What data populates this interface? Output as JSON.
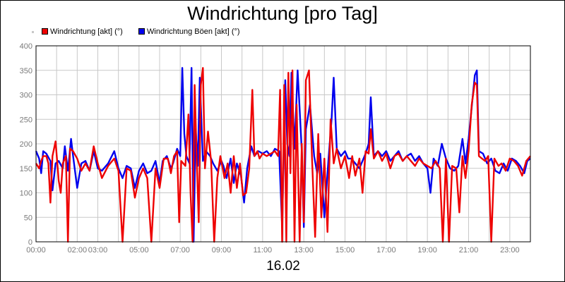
{
  "chart_data": {
    "type": "line",
    "title": "Windrichtung [pro Tag]",
    "xlabel": "16.02",
    "ylim": [
      0,
      400
    ],
    "xlim": [
      "00:00",
      "24:00"
    ],
    "grid": true,
    "legend_position": "top-left",
    "yticks": [
      "0",
      "50",
      "100",
      "150",
      "200",
      "250",
      "300",
      "350",
      "400"
    ],
    "xticks": [
      {
        "t": 0,
        "label": "00:00"
      },
      {
        "t": 2,
        "label": "02:00"
      },
      {
        "t": 3,
        "label": "03:00"
      },
      {
        "t": 5,
        "label": "05:00"
      },
      {
        "t": 7,
        "label": "07:00"
      },
      {
        "t": 9,
        "label": "09:00"
      },
      {
        "t": 11,
        "label": "11:00"
      },
      {
        "t": 13,
        "label": "13:00"
      },
      {
        "t": 15,
        "label": "15:00"
      },
      {
        "t": 17,
        "label": "17:00"
      },
      {
        "t": 19,
        "label": "19:00"
      },
      {
        "t": 21,
        "label": "21:00"
      },
      {
        "t": 23,
        "label": "23:00"
      }
    ],
    "series": [
      {
        "name": "Windrichtung Böen [akt] (°)",
        "color": "#0000ee",
        "points": [
          [
            0.0,
            185
          ],
          [
            0.15,
            170
          ],
          [
            0.25,
            140
          ],
          [
            0.35,
            185
          ],
          [
            0.5,
            180
          ],
          [
            0.7,
            165
          ],
          [
            0.8,
            105
          ],
          [
            0.95,
            160
          ],
          [
            1.1,
            165
          ],
          [
            1.3,
            150
          ],
          [
            1.4,
            195
          ],
          [
            1.55,
            145
          ],
          [
            1.7,
            210
          ],
          [
            1.8,
            175
          ],
          [
            2.0,
            110
          ],
          [
            2.2,
            160
          ],
          [
            2.4,
            165
          ],
          [
            2.6,
            145
          ],
          [
            2.8,
            185
          ],
          [
            3.0,
            150
          ],
          [
            3.2,
            145
          ],
          [
            3.5,
            160
          ],
          [
            3.8,
            185
          ],
          [
            4.0,
            150
          ],
          [
            4.2,
            130
          ],
          [
            4.4,
            155
          ],
          [
            4.6,
            150
          ],
          [
            4.8,
            110
          ],
          [
            5.0,
            145
          ],
          [
            5.2,
            160
          ],
          [
            5.4,
            140
          ],
          [
            5.6,
            145
          ],
          [
            5.8,
            165
          ],
          [
            6.0,
            120
          ],
          [
            6.15,
            165
          ],
          [
            6.35,
            175
          ],
          [
            6.55,
            150
          ],
          [
            6.65,
            160
          ],
          [
            6.85,
            190
          ],
          [
            7.0,
            175
          ],
          [
            7.1,
            355
          ],
          [
            7.2,
            220
          ],
          [
            7.3,
            175
          ],
          [
            7.45,
            160
          ],
          [
            7.55,
            355
          ],
          [
            7.65,
            0
          ],
          [
            7.75,
            230
          ],
          [
            7.85,
            155
          ],
          [
            7.95,
            335
          ],
          [
            8.1,
            165
          ],
          [
            8.25,
            185
          ],
          [
            8.45,
            175
          ],
          [
            8.6,
            160
          ],
          [
            8.8,
            145
          ],
          [
            9.0,
            165
          ],
          [
            9.1,
            155
          ],
          [
            9.25,
            130
          ],
          [
            9.45,
            170
          ],
          [
            9.6,
            120
          ],
          [
            9.75,
            160
          ],
          [
            9.95,
            135
          ],
          [
            10.1,
            80
          ],
          [
            10.25,
            150
          ],
          [
            10.45,
            195
          ],
          [
            10.6,
            175
          ],
          [
            10.8,
            185
          ],
          [
            11.0,
            180
          ],
          [
            11.2,
            185
          ],
          [
            11.4,
            175
          ],
          [
            11.6,
            190
          ],
          [
            11.8,
            185
          ],
          [
            11.95,
            30
          ],
          [
            12.1,
            330
          ],
          [
            12.2,
            200
          ],
          [
            12.3,
            175
          ],
          [
            12.4,
            345
          ],
          [
            12.55,
            190
          ],
          [
            12.7,
            350
          ],
          [
            12.8,
            270
          ],
          [
            12.9,
            185
          ],
          [
            13.0,
            30
          ],
          [
            13.1,
            230
          ],
          [
            13.3,
            280
          ],
          [
            13.5,
            175
          ],
          [
            13.65,
            140
          ],
          [
            13.8,
            180
          ],
          [
            14.0,
            50
          ],
          [
            14.2,
            170
          ],
          [
            14.35,
            250
          ],
          [
            14.45,
            335
          ],
          [
            14.6,
            190
          ],
          [
            14.8,
            175
          ],
          [
            15.0,
            185
          ],
          [
            15.15,
            170
          ],
          [
            15.3,
            170
          ],
          [
            15.5,
            160
          ],
          [
            15.7,
            150
          ],
          [
            15.85,
            165
          ],
          [
            16.0,
            180
          ],
          [
            16.15,
            200
          ],
          [
            16.25,
            295
          ],
          [
            16.4,
            175
          ],
          [
            16.6,
            185
          ],
          [
            16.8,
            175
          ],
          [
            17.0,
            185
          ],
          [
            17.2,
            165
          ],
          [
            17.4,
            175
          ],
          [
            17.6,
            185
          ],
          [
            17.8,
            165
          ],
          [
            18.0,
            175
          ],
          [
            18.2,
            180
          ],
          [
            18.4,
            165
          ],
          [
            18.6,
            175
          ],
          [
            18.8,
            160
          ],
          [
            19.0,
            150
          ],
          [
            19.15,
            100
          ],
          [
            19.3,
            170
          ],
          [
            19.5,
            155
          ],
          [
            19.7,
            200
          ],
          [
            19.9,
            170
          ],
          [
            20.1,
            150
          ],
          [
            20.3,
            145
          ],
          [
            20.5,
            155
          ],
          [
            20.7,
            210
          ],
          [
            20.85,
            160
          ],
          [
            21.0,
            210
          ],
          [
            21.15,
            275
          ],
          [
            21.3,
            340
          ],
          [
            21.4,
            350
          ],
          [
            21.5,
            185
          ],
          [
            21.7,
            180
          ],
          [
            21.9,
            160
          ],
          [
            22.1,
            170
          ],
          [
            22.3,
            145
          ],
          [
            22.5,
            140
          ],
          [
            22.7,
            160
          ],
          [
            22.9,
            145
          ],
          [
            23.1,
            170
          ],
          [
            23.3,
            165
          ],
          [
            23.5,
            155
          ],
          [
            23.7,
            140
          ],
          [
            23.85,
            165
          ],
          [
            24.0,
            170
          ]
        ]
      },
      {
        "name": "Windrichtung [akt] (°)",
        "color": "#ee0000",
        "points": [
          [
            0.0,
            160
          ],
          [
            0.15,
            150
          ],
          [
            0.25,
            165
          ],
          [
            0.35,
            175
          ],
          [
            0.5,
            175
          ],
          [
            0.6,
            160
          ],
          [
            0.7,
            80
          ],
          [
            0.8,
            175
          ],
          [
            0.95,
            205
          ],
          [
            1.1,
            125
          ],
          [
            1.2,
            100
          ],
          [
            1.3,
            160
          ],
          [
            1.45,
            175
          ],
          [
            1.55,
            0
          ],
          [
            1.65,
            190
          ],
          [
            1.8,
            185
          ],
          [
            2.0,
            170
          ],
          [
            2.2,
            145
          ],
          [
            2.4,
            160
          ],
          [
            2.6,
            145
          ],
          [
            2.8,
            195
          ],
          [
            3.0,
            160
          ],
          [
            3.2,
            130
          ],
          [
            3.5,
            155
          ],
          [
            3.8,
            170
          ],
          [
            4.0,
            145
          ],
          [
            4.2,
            0
          ],
          [
            4.4,
            150
          ],
          [
            4.6,
            145
          ],
          [
            4.8,
            90
          ],
          [
            5.0,
            130
          ],
          [
            5.2,
            150
          ],
          [
            5.4,
            130
          ],
          [
            5.6,
            0
          ],
          [
            5.8,
            150
          ],
          [
            6.0,
            110
          ],
          [
            6.2,
            170
          ],
          [
            6.4,
            170
          ],
          [
            6.55,
            140
          ],
          [
            6.7,
            175
          ],
          [
            6.85,
            185
          ],
          [
            6.95,
            40
          ],
          [
            7.05,
            165
          ],
          [
            7.25,
            155
          ],
          [
            7.4,
            260
          ],
          [
            7.5,
            100
          ],
          [
            7.6,
            0
          ],
          [
            7.7,
            320
          ],
          [
            7.8,
            170
          ],
          [
            7.9,
            40
          ],
          [
            8.0,
            320
          ],
          [
            8.1,
            355
          ],
          [
            8.2,
            150
          ],
          [
            8.35,
            225
          ],
          [
            8.5,
            165
          ],
          [
            8.65,
            0
          ],
          [
            8.8,
            130
          ],
          [
            8.95,
            175
          ],
          [
            9.15,
            130
          ],
          [
            9.3,
            160
          ],
          [
            9.45,
            100
          ],
          [
            9.6,
            175
          ],
          [
            9.75,
            110
          ],
          [
            9.9,
            160
          ],
          [
            10.05,
            95
          ],
          [
            10.2,
            100
          ],
          [
            10.35,
            150
          ],
          [
            10.5,
            310
          ],
          [
            10.6,
            175
          ],
          [
            10.75,
            185
          ],
          [
            10.85,
            170
          ],
          [
            11.0,
            180
          ],
          [
            11.2,
            175
          ],
          [
            11.4,
            180
          ],
          [
            11.6,
            185
          ],
          [
            11.75,
            175
          ],
          [
            11.85,
            310
          ],
          [
            11.95,
            0
          ],
          [
            12.05,
            320
          ],
          [
            12.15,
            0
          ],
          [
            12.25,
            345
          ],
          [
            12.35,
            140
          ],
          [
            12.45,
            350
          ],
          [
            12.55,
            0
          ],
          [
            12.65,
            280
          ],
          [
            12.8,
            0
          ],
          [
            12.9,
            200
          ],
          [
            13.0,
            40
          ],
          [
            13.1,
            330
          ],
          [
            13.25,
            350
          ],
          [
            13.4,
            170
          ],
          [
            13.55,
            10
          ],
          [
            13.7,
            220
          ],
          [
            13.85,
            50
          ],
          [
            14.0,
            170
          ],
          [
            14.15,
            20
          ],
          [
            14.3,
            250
          ],
          [
            14.45,
            160
          ],
          [
            14.6,
            190
          ],
          [
            14.8,
            150
          ],
          [
            15.0,
            175
          ],
          [
            15.2,
            130
          ],
          [
            15.35,
            175
          ],
          [
            15.5,
            135
          ],
          [
            15.7,
            170
          ],
          [
            15.85,
            100
          ],
          [
            16.0,
            185
          ],
          [
            16.15,
            180
          ],
          [
            16.25,
            230
          ],
          [
            16.4,
            170
          ],
          [
            16.6,
            185
          ],
          [
            16.8,
            165
          ],
          [
            17.0,
            180
          ],
          [
            17.2,
            150
          ],
          [
            17.4,
            175
          ],
          [
            17.6,
            180
          ],
          [
            17.8,
            165
          ],
          [
            18.0,
            175
          ],
          [
            18.2,
            165
          ],
          [
            18.4,
            155
          ],
          [
            18.6,
            170
          ],
          [
            18.8,
            160
          ],
          [
            19.0,
            155
          ],
          [
            19.2,
            150
          ],
          [
            19.4,
            165
          ],
          [
            19.6,
            150
          ],
          [
            19.75,
            0
          ],
          [
            19.9,
            170
          ],
          [
            20.05,
            0
          ],
          [
            20.2,
            155
          ],
          [
            20.4,
            150
          ],
          [
            20.55,
            60
          ],
          [
            20.7,
            175
          ],
          [
            20.85,
            130
          ],
          [
            21.0,
            185
          ],
          [
            21.15,
            280
          ],
          [
            21.3,
            325
          ],
          [
            21.4,
            320
          ],
          [
            21.5,
            175
          ],
          [
            21.65,
            170
          ],
          [
            21.8,
            165
          ],
          [
            21.95,
            175
          ],
          [
            22.1,
            0
          ],
          [
            22.25,
            170
          ],
          [
            22.45,
            155
          ],
          [
            22.6,
            160
          ],
          [
            22.8,
            145
          ],
          [
            23.0,
            170
          ],
          [
            23.2,
            165
          ],
          [
            23.4,
            155
          ],
          [
            23.6,
            135
          ],
          [
            23.8,
            165
          ],
          [
            24.0,
            175
          ]
        ]
      }
    ]
  },
  "legend": {
    "items": [
      {
        "label": "Windrichtung [akt] (°)",
        "color": "#ee0000"
      },
      {
        "label": "Windrichtung Böen [akt] (°)",
        "color": "#0000ee"
      }
    ]
  }
}
